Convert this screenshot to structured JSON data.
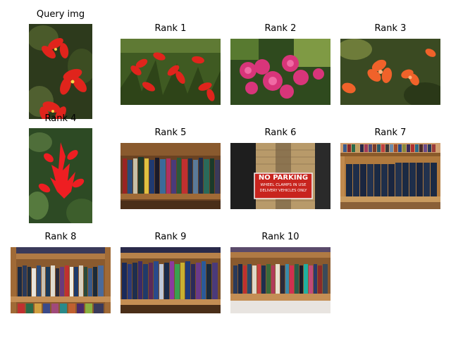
{
  "figure": {
    "query": {
      "title": "Query img",
      "subject": "red-flowers-icon"
    },
    "results": [
      {
        "title": "Rank 1",
        "subject": "red-flowers-icon"
      },
      {
        "title": "Rank 2",
        "subject": "pink-flowers-icon"
      },
      {
        "title": "Rank 3",
        "subject": "orange-flowers-icon"
      },
      {
        "title": "Rank 4",
        "subject": "red-flowers-icon"
      },
      {
        "title": "Rank 5",
        "subject": "bookshelf-icon"
      },
      {
        "title": "Rank 6",
        "subject": "no-parking-sign-icon",
        "sign": {
          "line1": "NO PARKING",
          "line2": "WHEEL CLAMPS IN USE",
          "line3": "DELIVERY VEHICLES ONLY"
        }
      },
      {
        "title": "Rank 7",
        "subject": "bookshelf-icon"
      },
      {
        "title": "Rank 8",
        "subject": "bookshelf-icon"
      },
      {
        "title": "Rank 9",
        "subject": "bookshelf-icon"
      },
      {
        "title": "Rank 10",
        "subject": "bookshelf-icon"
      }
    ]
  }
}
